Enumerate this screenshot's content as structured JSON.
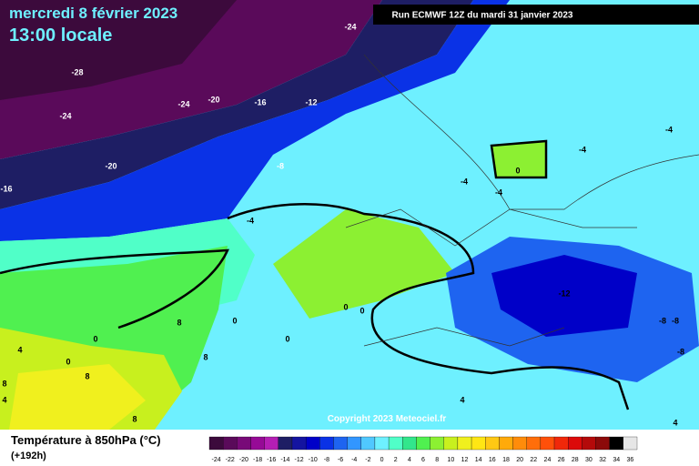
{
  "header": {
    "date": "mercredi 8 février 2023",
    "time": "13:00 locale",
    "run": "Run ECMWF 12Z du mardi 31 janvier 2023"
  },
  "map_labels": [
    "-24",
    "-28",
    "-24",
    "-24",
    "-20",
    "-16",
    "-12",
    "-8",
    "-20",
    "-16",
    "-4",
    "-4",
    "-4",
    "0",
    "-4",
    "-4",
    "-12",
    "-8",
    "-8",
    "-8",
    "8",
    "0",
    "0",
    "0",
    "4",
    "8",
    "8",
    "0",
    "0",
    "0",
    "4",
    "4",
    "8",
    "4",
    "8"
  ],
  "copyright": "Copyright 2023 Meteociel.fr",
  "legend": {
    "title": "Température à 850hPa (°C)",
    "lead": "(+192h)",
    "labels": [
      "-24",
      "-22",
      "-20",
      "-18",
      "-16",
      "-14",
      "-12",
      "-10",
      "-8",
      "-6",
      "-4",
      "-2",
      "0",
      "2",
      "4",
      "6",
      "8",
      "10",
      "12",
      "14",
      "16",
      "18",
      "20",
      "22",
      "24",
      "26",
      "28",
      "30",
      "32",
      "34",
      "36"
    ],
    "colors": [
      "#3c0a3c",
      "#5a0a5a",
      "#780a78",
      "#960a96",
      "#b41eb4",
      "#1e1e64",
      "#1414a0",
      "#0000c8",
      "#0a32e6",
      "#1e64f0",
      "#3296ff",
      "#50c8ff",
      "#6ef0ff",
      "#50ffc8",
      "#32e68c",
      "#50f050",
      "#8cf032",
      "#c8f01e",
      "#f0f01e",
      "#ffe614",
      "#ffc814",
      "#ffaa0a",
      "#ff8c0a",
      "#ff6e0a",
      "#ff500a",
      "#f0280a",
      "#dc0a0a",
      "#b40a0a",
      "#8c0a0a",
      "#000000",
      "#e6e6e6"
    ]
  }
}
